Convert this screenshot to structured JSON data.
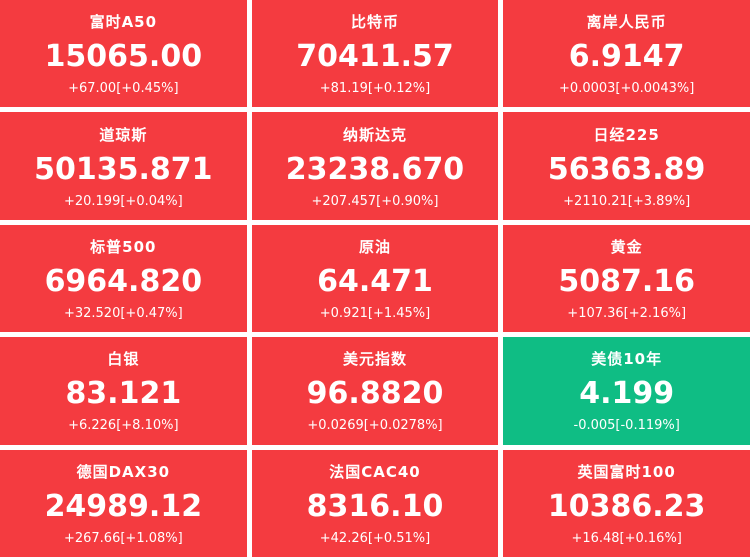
{
  "colors": {
    "up_background": "#f43b40",
    "down_background": "#0fbd84",
    "text": "#ffffff"
  },
  "tiles": [
    {
      "name": "富时A50",
      "value": "15065.00",
      "change": "+67.00[+0.45%]",
      "trend": "up"
    },
    {
      "name": "比特币",
      "value": "70411.57",
      "change": "+81.19[+0.12%]",
      "trend": "up"
    },
    {
      "name": "离岸人民币",
      "value": "6.9147",
      "change": "+0.0003[+0.0043%]",
      "trend": "up"
    },
    {
      "name": "道琼斯",
      "value": "50135.871",
      "change": "+20.199[+0.04%]",
      "trend": "up"
    },
    {
      "name": "纳斯达克",
      "value": "23238.670",
      "change": "+207.457[+0.90%]",
      "trend": "up"
    },
    {
      "name": "日经225",
      "value": "56363.89",
      "change": "+2110.21[+3.89%]",
      "trend": "up"
    },
    {
      "name": "标普500",
      "value": "6964.820",
      "change": "+32.520[+0.47%]",
      "trend": "up"
    },
    {
      "name": "原油",
      "value": "64.471",
      "change": "+0.921[+1.45%]",
      "trend": "up"
    },
    {
      "name": "黄金",
      "value": "5087.16",
      "change": "+107.36[+2.16%]",
      "trend": "up"
    },
    {
      "name": "白银",
      "value": "83.121",
      "change": "+6.226[+8.10%]",
      "trend": "up"
    },
    {
      "name": "美元指数",
      "value": "96.8820",
      "change": "+0.0269[+0.0278%]",
      "trend": "up"
    },
    {
      "name": "美债10年",
      "value": "4.199",
      "change": "-0.005[-0.119%]",
      "trend": "down"
    },
    {
      "name": "德国DAX30",
      "value": "24989.12",
      "change": "+267.66[+1.08%]",
      "trend": "up"
    },
    {
      "name": "法国CAC40",
      "value": "8316.10",
      "change": "+42.26[+0.51%]",
      "trend": "up"
    },
    {
      "name": "英国富时100",
      "value": "10386.23",
      "change": "+16.48[+0.16%]",
      "trend": "up"
    }
  ]
}
